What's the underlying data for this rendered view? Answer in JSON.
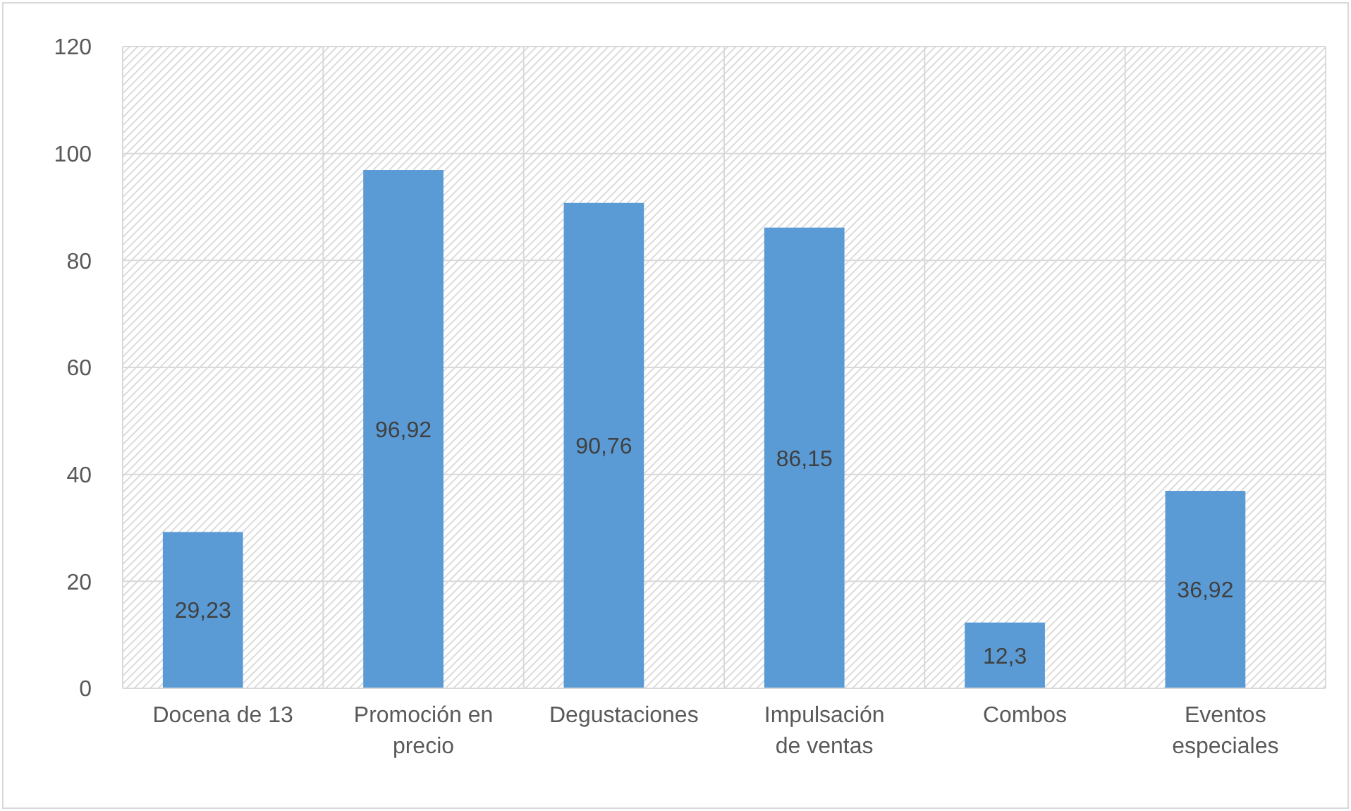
{
  "chart_data": {
    "type": "bar",
    "categories": [
      "Docena de 13",
      "Promoción en precio",
      "Degustaciones",
      "Impulsación de ventas",
      "Combos",
      "Eventos especiales"
    ],
    "values": [
      29.23,
      96.92,
      90.76,
      86.15,
      12.3,
      36.92
    ],
    "value_labels": [
      "29,23",
      "96,92",
      "90,76",
      "86,15",
      "12,3",
      "36,92"
    ],
    "color": "#5b9bd5",
    "ylim": [
      0,
      120
    ],
    "yticks": [
      0,
      20,
      40,
      60,
      80,
      100,
      120
    ],
    "grid": true
  }
}
